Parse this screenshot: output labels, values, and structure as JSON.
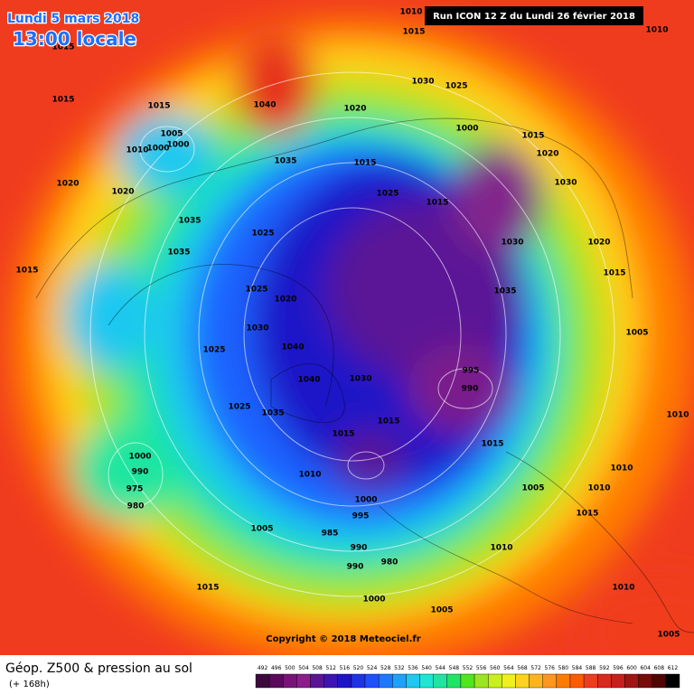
{
  "header": {
    "date": "Lundi 5 mars 2018",
    "time": "13:00 locale",
    "run": "Run ICON 12 Z du Lundi 26 février 2018",
    "copyright": "Copyright © 2018 Meteociel.fr"
  },
  "footer": {
    "title": "Géop. Z500 & pression au sol",
    "lead": "(+ 168h)"
  },
  "legend": {
    "scale": [
      492,
      496,
      500,
      504,
      508,
      512,
      516,
      520,
      524,
      528,
      532,
      536,
      540,
      544,
      548,
      552,
      556,
      560,
      564,
      568,
      572,
      576,
      580,
      584,
      588,
      592,
      596,
      600,
      604,
      608,
      612
    ]
  },
  "isobar_labels": [
    1010,
    1015,
    1010,
    1015,
    1030,
    1025,
    1015,
    1015,
    1040,
    1020,
    1005,
    1010,
    1000,
    1000,
    1000,
    1015,
    1020,
    1035,
    1015,
    1020,
    1020,
    1025,
    1030,
    1015,
    1035,
    1025,
    1030,
    1020,
    1035,
    1015,
    1025,
    1020,
    1035,
    1015,
    1005,
    1030,
    1025,
    1040,
    995,
    990,
    1030,
    1040,
    1025,
    1035,
    1015,
    1015,
    1015,
    1000,
    990,
    975,
    980,
    1010,
    1000,
    995,
    1005,
    985,
    990,
    990,
    980,
    1015,
    1000,
    1005,
    1010,
    1005,
    1010,
    1010,
    1015,
    1010,
    1005,
    1010
  ]
}
